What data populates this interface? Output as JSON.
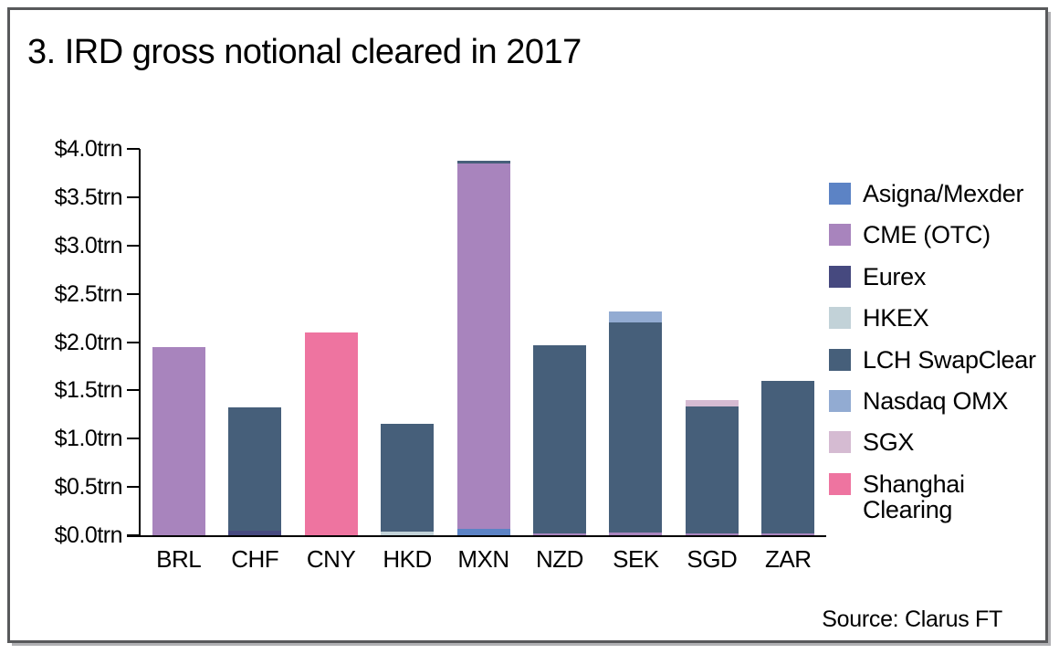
{
  "title": "3. IRD gross notional cleared in 2017",
  "source": "Source: Clarus FT",
  "frame": {
    "border_color": "#58595b",
    "shadow_color": "#b1b1b4",
    "background": "#ffffff"
  },
  "chart_data": {
    "type": "bar",
    "stacked": true,
    "title": "3. IRD gross notional cleared in 2017",
    "xlabel": "",
    "ylabel": "",
    "unit": "trn USD",
    "ylim": [
      0.0,
      4.0
    ],
    "ytick_step": 0.5,
    "ytick_labels": [
      "$4.0trn",
      "$3.5trn",
      "$3.0trn",
      "$2.5trn",
      "$2.0trn",
      "$1.5trn",
      "$1.0trn",
      "$0.5trn",
      "$0.0trn"
    ],
    "grid": false,
    "legend_position": "right",
    "categories": [
      "BRL",
      "CHF",
      "CNY",
      "HKD",
      "MXN",
      "NZD",
      "SEK",
      "SGD",
      "ZAR"
    ],
    "series": [
      {
        "name": "Asigna/Mexder",
        "color": "#5c83c5",
        "values": [
          0,
          0,
          0,
          0,
          0.07,
          0,
          0,
          0,
          0
        ]
      },
      {
        "name": "CME (OTC)",
        "color": "#a884bd",
        "values": [
          1.95,
          0,
          0,
          0,
          3.78,
          0.02,
          0.03,
          0.02,
          0.02
        ]
      },
      {
        "name": "Eurex",
        "color": "#46497f",
        "values": [
          0,
          0.05,
          0,
          0,
          0,
          0,
          0,
          0,
          0
        ]
      },
      {
        "name": "HKEX",
        "color": "#c2d2d8",
        "values": [
          0,
          0,
          0,
          0.04,
          0,
          0,
          0,
          0,
          0
        ]
      },
      {
        "name": "LCH SwapClear",
        "color": "#465f7a",
        "values": [
          0,
          1.27,
          0,
          1.11,
          0.03,
          1.95,
          2.17,
          1.31,
          1.58
        ]
      },
      {
        "name": "Nasdaq OMX",
        "color": "#92abd2",
        "values": [
          0,
          0,
          0,
          0,
          0,
          0,
          0.12,
          0,
          0
        ]
      },
      {
        "name": "SGX",
        "color": "#d5bbd2",
        "values": [
          0,
          0,
          0,
          0,
          0,
          0,
          0,
          0.07,
          0
        ]
      },
      {
        "name": "Shanghai Clearing",
        "color": "#ee74a0",
        "values": [
          0,
          0,
          2.1,
          0,
          0,
          0,
          0,
          0,
          0
        ]
      }
    ],
    "totals": {
      "BRL": 1.95,
      "CHF": 1.32,
      "CNY": 2.1,
      "HKD": 1.15,
      "MXN": 3.88,
      "NZD": 1.97,
      "SEK": 2.32,
      "SGD": 1.4,
      "ZAR": 1.6
    }
  }
}
